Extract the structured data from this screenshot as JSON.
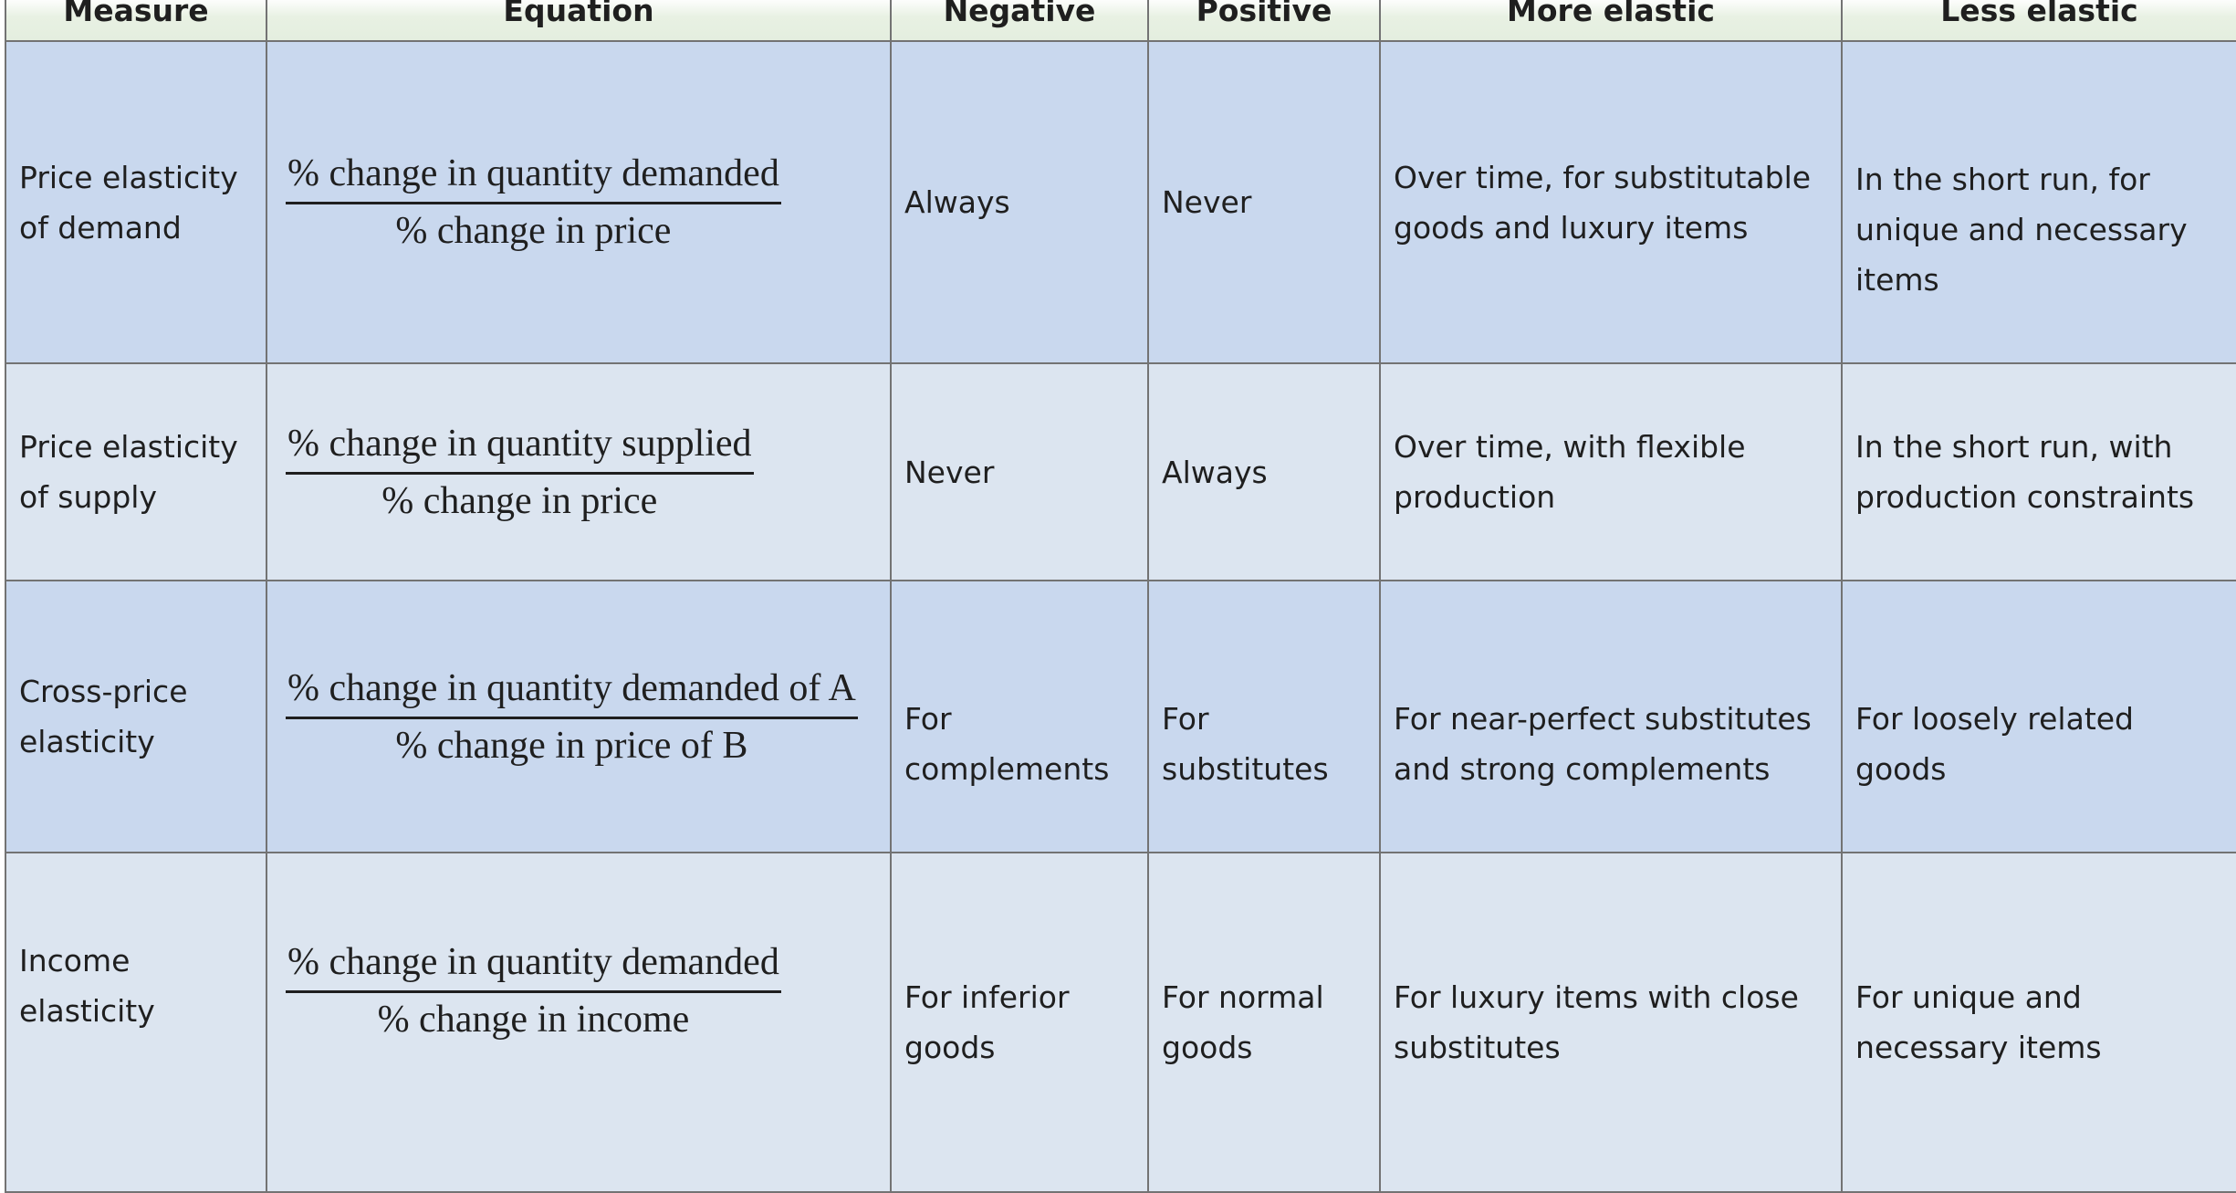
{
  "headers": {
    "measure": "Measure",
    "equation": "Equation",
    "negative": "Negative",
    "positive": "Positive",
    "more_elastic": "More elastic",
    "less_elastic": "Less elastic"
  },
  "rows": [
    {
      "measure": "Price elasticity of demand",
      "eq_num": "% change in quantity demanded",
      "eq_den": "% change in price",
      "negative": "Always",
      "positive": "Never",
      "more_elastic": "Over time, for substitutable goods and luxury items",
      "less_elastic": "In the short run, for unique and necessary items"
    },
    {
      "measure": "Price elasticity of supply",
      "eq_num": "% change in quantity supplied",
      "eq_den": "% change in price",
      "negative": "Never",
      "positive": "Always",
      "more_elastic": "Over time, with flexible production",
      "less_elastic": "In the short run, with production constraints"
    },
    {
      "measure": "Cross-price elasticity",
      "eq_num": "% change in quantity demanded of A",
      "eq_den": "% change in price of B",
      "negative": "For complements",
      "positive": "For substitutes",
      "more_elastic": "For near-perfect substitutes and strong complements",
      "less_elastic": "For loosely related goods"
    },
    {
      "measure": "Income elasticity",
      "eq_num": "% change in quantity demanded",
      "eq_den": "% change in income",
      "negative": "For inferior goods",
      "positive": "For normal goods",
      "more_elastic": "For luxury items with close substitutes",
      "less_elastic": "For unique and necessary items"
    }
  ]
}
